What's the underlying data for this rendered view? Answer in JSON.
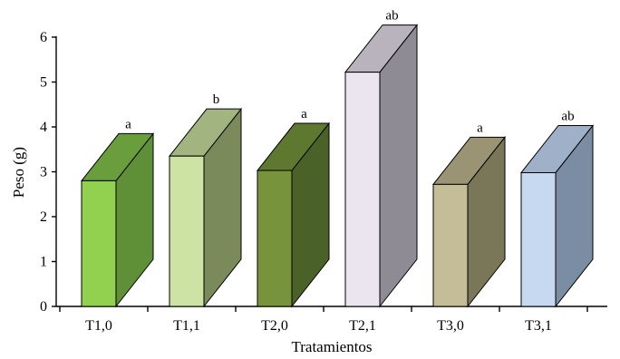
{
  "chart_data": {
    "type": "bar",
    "title": "",
    "xlabel": "Tratamientos",
    "ylabel": "Peso (g)",
    "ylim": [
      0,
      6
    ],
    "yticks": [
      "0",
      "1",
      "2",
      "3",
      "4",
      "5",
      "6"
    ],
    "grid": false,
    "legend": "none",
    "style": "3d-box",
    "categories": [
      "T1,0",
      "T1,1",
      "T2,0",
      "T2,1",
      "T3,0",
      "T3,1"
    ],
    "values": [
      2.8,
      3.35,
      3.03,
      5.22,
      2.72,
      2.98
    ],
    "significance_labels": [
      "a",
      "b",
      "a",
      "ab",
      "a",
      "ab"
    ],
    "colors": [
      {
        "front": "#92d050",
        "side": "#5f8f37",
        "top": "#6a9e3c"
      },
      {
        "front": "#cde3a3",
        "side": "#7a8a5a",
        "top": "#a2b480"
      },
      {
        "front": "#77933c",
        "side": "#4a6128",
        "top": "#5e7830"
      },
      {
        "front": "#ebe5f0",
        "side": "#8f8b94",
        "top": "#b8b3bd"
      },
      {
        "front": "#c4bd97",
        "side": "#7a7658",
        "top": "#9a9474"
      },
      {
        "front": "#c6d9f1",
        "side": "#7b8da3",
        "top": "#9eb1c8"
      }
    ]
  }
}
